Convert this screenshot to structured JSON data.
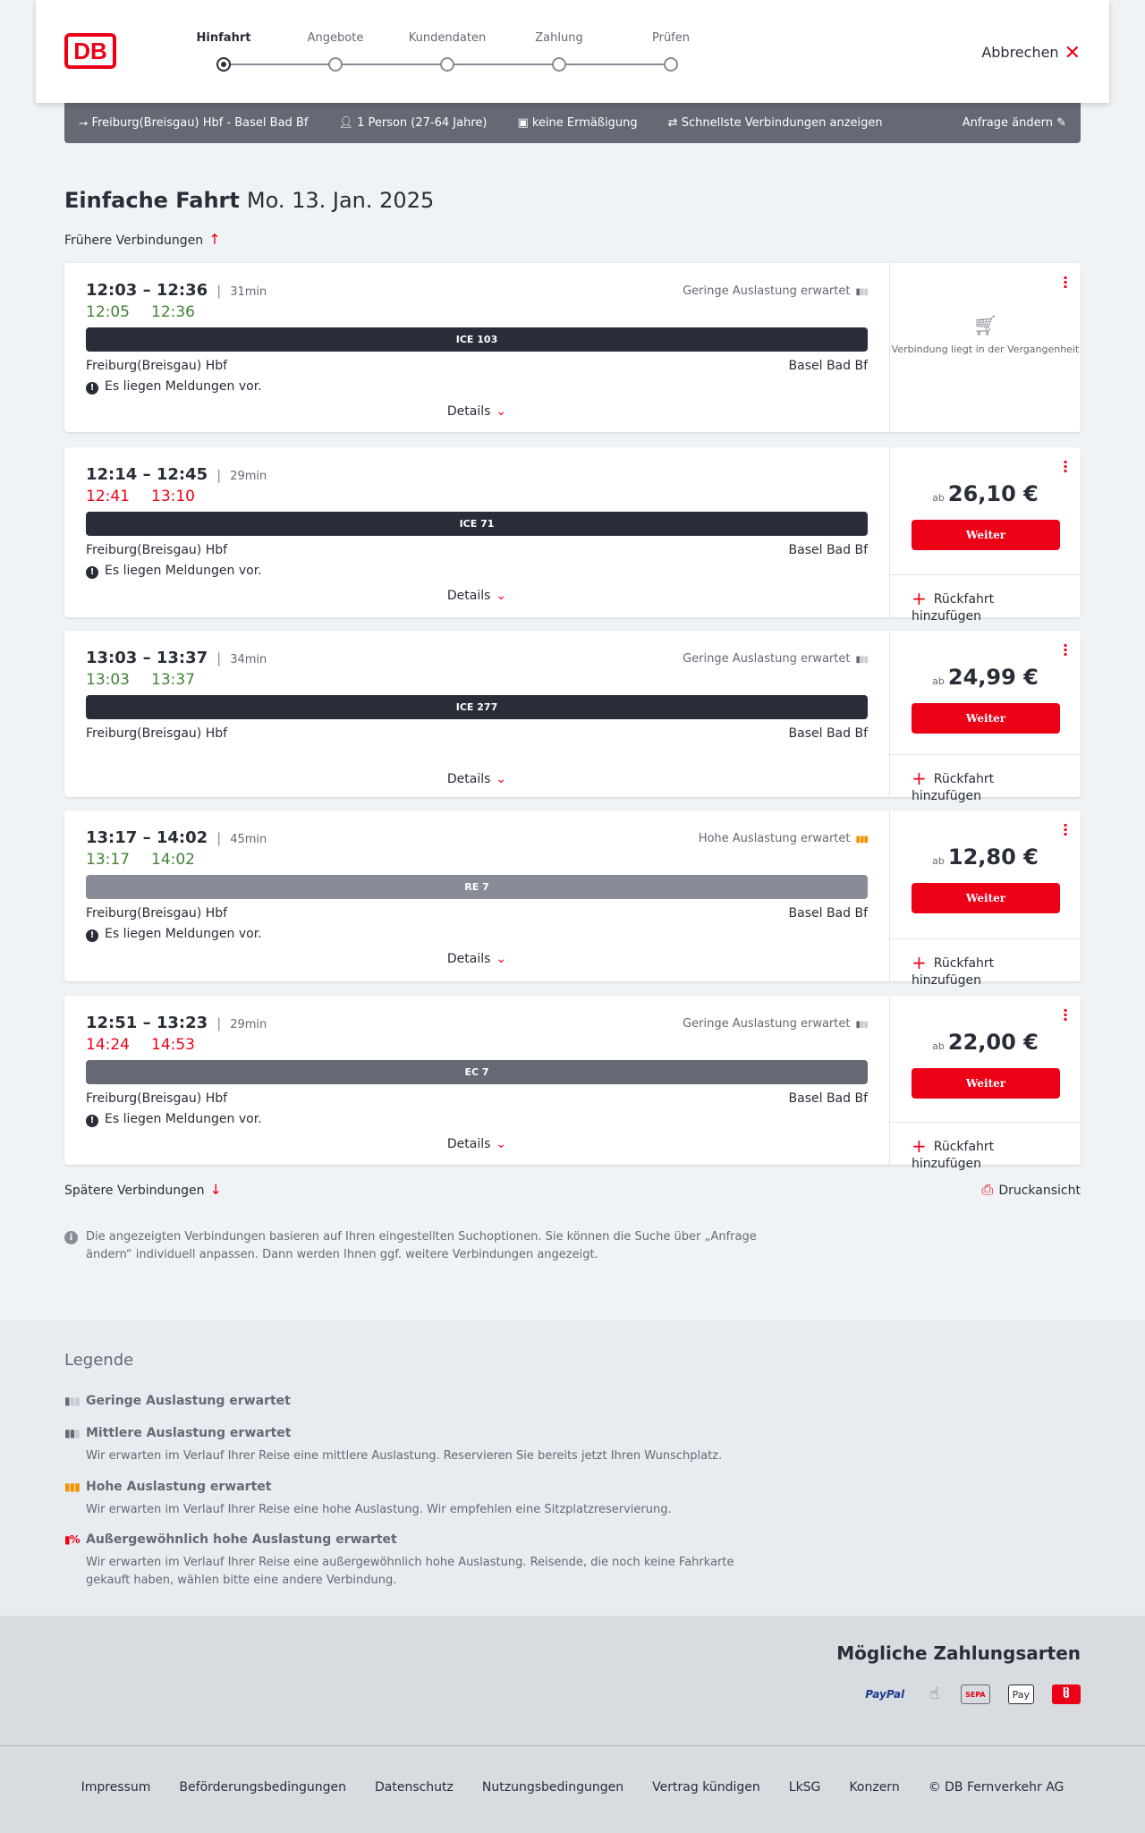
{
  "header": {
    "logo": "DB",
    "steps": [
      "Hinfahrt",
      "Angebote",
      "Kundendaten",
      "Zahlung",
      "Prüfen"
    ],
    "active_step": 0,
    "cancel": "Abbrechen"
  },
  "searchbar": {
    "route": "Freiburg(Breisgau) Hbf - Basel Bad Bf",
    "travellers": "1 Person (27-64 Jahre)",
    "discount": "keine Ermäßigung",
    "fastest": "Schnellste Verbindungen anzeigen",
    "change": "Anfrage ändern"
  },
  "title": {
    "type": "Einfache Fahrt",
    "date": "Mo. 13. Jan. 2025"
  },
  "earlier": "Frühere Verbindungen",
  "later": "Spätere Verbindungen",
  "print": "Druckansicht",
  "colors": {
    "accent": "#ec0016",
    "ontime": "#408335",
    "delay": "#ec0016",
    "ice": "#282d37",
    "re": "#878c96",
    "ec": "#646973",
    "high_load": "#f39200"
  },
  "labels": {
    "details": "Details",
    "weiter": "Weiter",
    "ab": "ab",
    "return": "Rückfahrt hinzufügen",
    "messages": "Es liegen Meldungen vor.",
    "past": "Verbindung liegt in der Vergangenheit"
  },
  "connections": [
    {
      "times": "12:03 – 12:36",
      "duration": "31min",
      "real_dep": "12:05",
      "real_arr": "12:36",
      "real_status": "ontime",
      "load": "Geringe Auslastung erwartet",
      "load_level": "low",
      "train": "ICE 103",
      "train_type": "ice",
      "from": "Freiburg(Breisgau) Hbf",
      "to": "Basel Bad Bf",
      "messages": true,
      "past": true,
      "price": ""
    },
    {
      "times": "12:14 – 12:45",
      "duration": "29min",
      "real_dep": "12:41",
      "real_arr": "13:10",
      "real_status": "delay",
      "load": "",
      "load_level": "",
      "train": "ICE 71",
      "train_type": "ice",
      "from": "Freiburg(Breisgau) Hbf",
      "to": "Basel Bad Bf",
      "messages": true,
      "past": false,
      "price": "26,10 €"
    },
    {
      "times": "13:03 – 13:37",
      "duration": "34min",
      "real_dep": "13:03",
      "real_arr": "13:37",
      "real_status": "ontime",
      "load": "Geringe Auslastung erwartet",
      "load_level": "low",
      "train": "ICE 277",
      "train_type": "ice",
      "from": "Freiburg(Breisgau) Hbf",
      "to": "Basel Bad Bf",
      "messages": false,
      "past": false,
      "price": "24,99 €"
    },
    {
      "times": "13:17 – 14:02",
      "duration": "45min",
      "real_dep": "13:17",
      "real_arr": "14:02",
      "real_status": "ontime",
      "load": "Hohe Auslastung erwartet",
      "load_level": "high",
      "train": "RE 7",
      "train_type": "re",
      "from": "Freiburg(Breisgau) Hbf",
      "to": "Basel Bad Bf",
      "messages": true,
      "past": false,
      "price": "12,80 €"
    },
    {
      "times": "12:51 – 13:23",
      "duration": "29min",
      "real_dep": "14:24",
      "real_arr": "14:53",
      "real_status": "delay",
      "load": "Geringe Auslastung erwartet",
      "load_level": "low",
      "train": "EC 7",
      "train_type": "ec",
      "from": "Freiburg(Breisgau) Hbf",
      "to": "Basel Bad Bf",
      "messages": true,
      "past": false,
      "price": "22,00 €"
    }
  ],
  "info": "Die angezeigten Verbindungen basieren auf Ihren eingestellten Suchoptionen. Sie können die Suche über „Anfrage ändern“ individuell anpassen. Dann werden Ihnen ggf. weitere Verbindungen angezeigt.",
  "legend": {
    "title": "Legende",
    "items": [
      {
        "title": "Geringe Auslastung erwartet",
        "text": ""
      },
      {
        "title": "Mittlere Auslastung erwartet",
        "text": "Wir erwarten im Verlauf Ihrer Reise eine mittlere Auslastung. Reservieren Sie bereits jetzt Ihren Wunschplatz."
      },
      {
        "title": "Hohe Auslastung erwartet",
        "text": "Wir erwarten im Verlauf Ihrer Reise eine hohe Auslastung. Wir empfehlen eine Sitzplatzreservierung."
      },
      {
        "title": "Außergewöhnlich hohe Auslastung erwartet",
        "text": "Wir erwarten im Verlauf Ihrer Reise eine außergewöhnlich hohe Auslastung. Reisende, die noch keine Fahrkarte gekauft haben, wählen bitte eine andere Verbindung."
      }
    ]
  },
  "payment": {
    "title": "Mögliche Zahlungsarten",
    "methods": [
      "PayPal",
      "Kreditkarte",
      "SEPA",
      "Pay",
      "Bonus"
    ]
  },
  "footer": [
    "Impressum",
    "Beförderungsbedingungen",
    "Datenschutz",
    "Nutzungsbedingungen",
    "Vertrag kündigen",
    "LkSG",
    "Konzern",
    "© DB Fernverkehr AG"
  ]
}
